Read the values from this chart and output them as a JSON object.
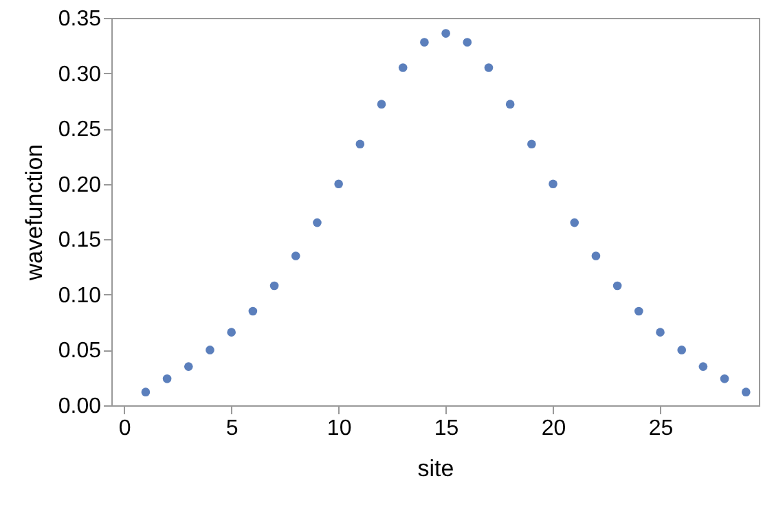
{
  "chart_data": {
    "type": "scatter",
    "xlabel": "site",
    "ylabel": "wavefunction",
    "x": [
      1,
      2,
      3,
      4,
      5,
      6,
      7,
      8,
      9,
      10,
      11,
      12,
      13,
      14,
      15,
      16,
      17,
      18,
      19,
      20,
      21,
      22,
      23,
      24,
      25,
      26,
      27,
      28,
      29
    ],
    "series": [
      {
        "color": "#5b7fbc",
        "values": [
          0.012,
          0.024,
          0.035,
          0.05,
          0.066,
          0.085,
          0.108,
          0.135,
          0.165,
          0.2,
          0.236,
          0.272,
          0.305,
          0.328,
          0.336,
          0.328,
          0.305,
          0.272,
          0.236,
          0.2,
          0.165,
          0.135,
          0.108,
          0.085,
          0.066,
          0.05,
          0.035,
          0.024,
          0.012
        ]
      }
    ],
    "xlim": [
      -0.6,
      29.6
    ],
    "xticks": [
      0,
      5,
      10,
      15,
      20,
      25
    ],
    "ylim": [
      0,
      0.35
    ],
    "yticks": [
      {
        "value": 0,
        "label": "0.00"
      },
      0.05,
      {
        "value": 0.1,
        "label": "0.10"
      },
      0.15,
      {
        "value": 0.2,
        "label": "0.20"
      },
      0.25,
      {
        "value": 0.3,
        "label": "0.30"
      },
      0.35
    ],
    "marker": "circle"
  }
}
